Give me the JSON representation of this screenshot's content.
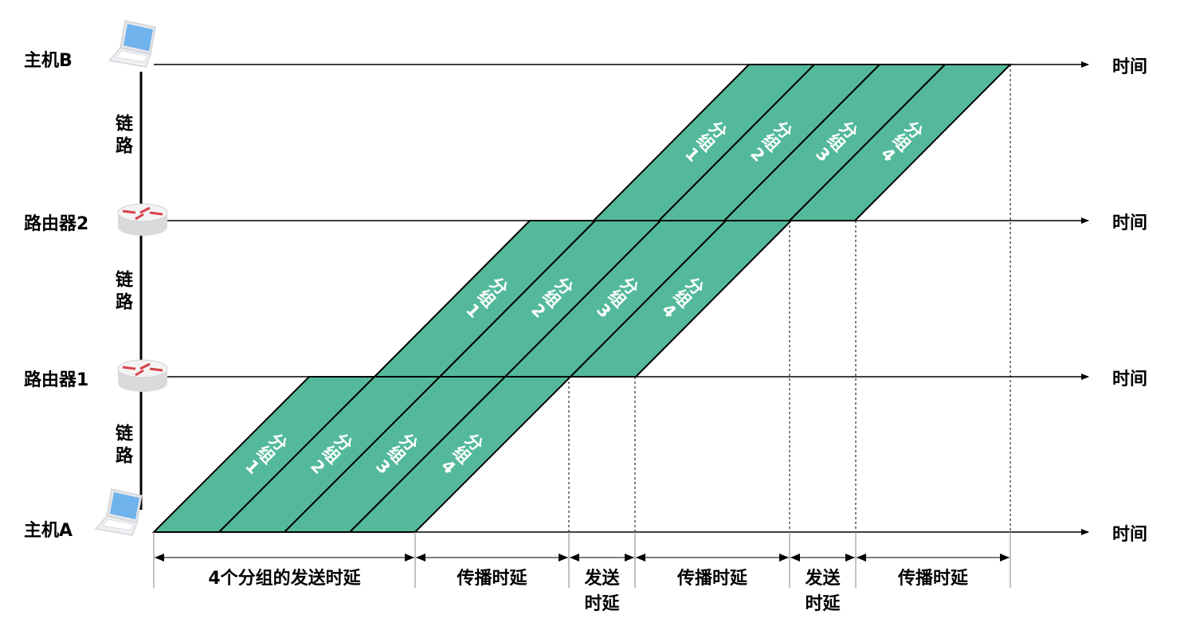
{
  "nodes": [
    {
      "label": "主机B",
      "type": "laptop"
    },
    {
      "label": "路由器2",
      "type": "router"
    },
    {
      "label": "路由器1",
      "type": "router"
    },
    {
      "label": "主机A",
      "type": "laptop"
    }
  ],
  "link_label": "链路",
  "time_label": "时间",
  "packet_label": "分组",
  "packet_numbers": [
    "1",
    "2",
    "3",
    "4"
  ],
  "measurements": [
    "4个分组的发送时延",
    "传播时延",
    "发送时延",
    "传播时延",
    "发送时延",
    "传播时延"
  ],
  "colors": {
    "packet_fill": "#54b99b",
    "line": "#000000"
  }
}
